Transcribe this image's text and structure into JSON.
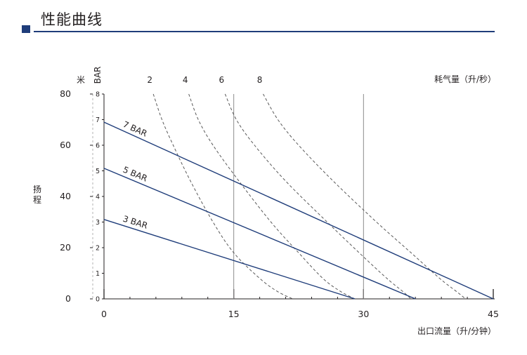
{
  "page": {
    "title": "性能曲线"
  },
  "chart_data": {
    "type": "line",
    "title": "",
    "xlabel": "出口流量（升/分钟）",
    "ylabel": "扬程",
    "y_unit_left": "米",
    "y_unit_right": "BAR",
    "top_axis_label": "耗气量（升/秒）",
    "xlim": [
      0,
      45
    ],
    "ylim": [
      0,
      80
    ],
    "y2lim": [
      0,
      8
    ],
    "x_ticks": [
      "0",
      "15",
      "30",
      "45"
    ],
    "y_ticks": [
      "0",
      "20",
      "40",
      "60",
      "80"
    ],
    "y2_ticks": [
      "0",
      "1",
      "2",
      "3",
      "4",
      "5",
      "6",
      "7",
      "8"
    ],
    "grid": "vertical lines at 15 and 30",
    "series": [
      {
        "name": "7 BAR",
        "style": "solid",
        "color": "#1f3d7a",
        "x": [
          0,
          45
        ],
        "y": [
          69,
          0
        ]
      },
      {
        "name": "5 BAR",
        "style": "solid",
        "color": "#1f3d7a",
        "x": [
          0,
          36
        ],
        "y": [
          51,
          0
        ]
      },
      {
        "name": "3 BAR",
        "style": "solid",
        "color": "#1f3d7a",
        "x": [
          0,
          29
        ],
        "y": [
          31,
          0
        ]
      }
    ],
    "air_consumption_curves": [
      {
        "label": "2",
        "style": "dashed",
        "x": [
          5.7,
          6.7,
          8.0,
          10.0,
          12.6,
          15.0,
          18.0,
          20.0,
          21.8
        ],
        "y": [
          80,
          70,
          60,
          46,
          30,
          18,
          8,
          3,
          0
        ]
      },
      {
        "label": "4",
        "style": "dashed",
        "x": [
          9.8,
          10.9,
          12.6,
          15.6,
          19.3,
          22.5,
          25.3,
          27.3,
          29.0
        ],
        "y": [
          80,
          70,
          60,
          46,
          30,
          18,
          8,
          3,
          0
        ]
      },
      {
        "label": "6",
        "style": "dashed",
        "x": [
          14.0,
          15.3,
          17.4,
          21.0,
          25.8,
          29.5,
          32.7,
          34.5,
          35.5
        ],
        "y": [
          80,
          70,
          60,
          46,
          30,
          18,
          8,
          3,
          0
        ]
      },
      {
        "label": "8",
        "style": "dashed",
        "x": [
          18.4,
          20.1,
          22.5,
          26.5,
          31.5,
          35.5,
          38.8,
          40.7,
          41.8
        ],
        "y": [
          80,
          70,
          60,
          46,
          30,
          18,
          8,
          3,
          0
        ]
      }
    ],
    "colors": {
      "curve": "#1f3d7a",
      "dashed": "#595959",
      "grid": "#8c8c8c",
      "text": "#231f20"
    }
  }
}
